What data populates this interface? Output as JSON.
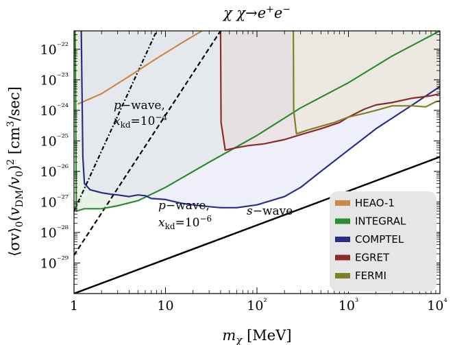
{
  "chart_data": {
    "type": "line",
    "title": "χ χ→e⁺e⁻",
    "xlabel": "m_χ  [MeV]",
    "ylabel": "⟨σv⟩₀(v_DM/v₀)²  [cm³/sec]",
    "xscale": "log",
    "yscale": "log",
    "xlim": [
      1,
      10000
    ],
    "ylim": [
      1e-30,
      4e-22
    ],
    "x_ticks": [
      "1",
      "10",
      "10²",
      "10³",
      "10⁴"
    ],
    "y_ticks": [
      "10⁻²⁹",
      "10⁻²⁸",
      "10⁻²⁷",
      "10⁻²⁶",
      "10⁻²⁵",
      "10⁻²⁴",
      "10⁻²³",
      "10⁻²²"
    ],
    "legend_position": "bottom-right",
    "series": [
      {
        "name": "HEAO-1",
        "color": "#c8894a",
        "fill": "#f3e6d8",
        "points": [
          [
            1.1,
            1.6e-24
          ],
          [
            2,
            3.5e-24
          ],
          [
            4,
            1.3e-23
          ],
          [
            8,
            5e-23
          ],
          [
            15,
            1.6e-22
          ],
          [
            25,
            4e-22
          ]
        ]
      },
      {
        "name": "INTEGRAL",
        "color": "#2e8b2e",
        "fill": "#d6e8d4",
        "points": [
          [
            1.03,
            4e-22
          ],
          [
            1.06,
            5e-28
          ],
          [
            1.3,
            6e-28
          ],
          [
            2,
            6e-28
          ],
          [
            3,
            7.5e-28
          ],
          [
            5,
            1.1e-27
          ],
          [
            10,
            3e-27
          ],
          [
            30,
            2e-26
          ],
          [
            100,
            1.5e-25
          ],
          [
            300,
            1.2e-24
          ],
          [
            1000,
            8e-24
          ],
          [
            3000,
            6e-23
          ],
          [
            10000,
            4e-22
          ]
        ]
      },
      {
        "name": "COMPTEL",
        "color": "#2b2b8f",
        "fill": "#e2e2f4",
        "points": [
          [
            1.2,
            4e-22
          ],
          [
            1.25,
            3e-26
          ],
          [
            1.3,
            4e-27
          ],
          [
            1.5,
            2.5e-27
          ],
          [
            2,
            2e-27
          ],
          [
            2.5,
            1.8e-27
          ],
          [
            3,
            1.7e-27
          ],
          [
            4,
            1.5e-27
          ],
          [
            5,
            1.7e-27
          ],
          [
            6,
            1.6e-27
          ],
          [
            7,
            1.3e-27
          ],
          [
            10,
            1.2e-27
          ],
          [
            15,
            9e-28
          ],
          [
            20,
            8e-28
          ],
          [
            30,
            7e-28
          ],
          [
            40,
            6.5e-28
          ],
          [
            60,
            6.5e-28
          ],
          [
            100,
            8e-28
          ],
          [
            200,
            1.5e-27
          ],
          [
            300,
            3e-27
          ],
          [
            500,
            1e-26
          ],
          [
            1000,
            5e-26
          ],
          [
            2000,
            2.5e-25
          ],
          [
            5000,
            1.5e-24
          ],
          [
            10000,
            6e-24
          ]
        ]
      },
      {
        "name": "EGRET",
        "color": "#8b2a2a",
        "fill": "#ead8d8",
        "points": [
          [
            40,
            4e-22
          ],
          [
            40.5,
            4e-25
          ],
          [
            45,
            5e-26
          ],
          [
            60,
            6e-26
          ],
          [
            80,
            7e-26
          ],
          [
            120,
            8e-26
          ],
          [
            200,
            1.1e-25
          ],
          [
            300,
            1.6e-25
          ],
          [
            500,
            2.5e-25
          ],
          [
            800,
            4e-25
          ],
          [
            1000,
            6e-25
          ],
          [
            1500,
            1.1e-24
          ],
          [
            2000,
            1.5e-24
          ],
          [
            3000,
            1.8e-24
          ],
          [
            5000,
            2.5e-24
          ],
          [
            8000,
            3e-24
          ],
          [
            10000,
            3.5e-24
          ]
        ]
      },
      {
        "name": "FERMI",
        "color": "#7f7f26",
        "fill": "#eeeedd",
        "points": [
          [
            250,
            4e-22
          ],
          [
            252,
            1e-24
          ],
          [
            270,
            1.7e-25
          ],
          [
            350,
            2.2e-25
          ],
          [
            500,
            3e-25
          ],
          [
            700,
            4e-25
          ],
          [
            1000,
            6e-25
          ],
          [
            1500,
            8e-25
          ],
          [
            2000,
            1e-24
          ],
          [
            3000,
            1.4e-24
          ],
          [
            5000,
            1.4e-24
          ],
          [
            7000,
            1.3e-24
          ],
          [
            9000,
            1.9e-24
          ],
          [
            10000,
            2e-24
          ]
        ]
      }
    ],
    "reference_lines": [
      {
        "label": "s−wave",
        "style": "solid",
        "points": [
          [
            1,
            1e-30
          ],
          [
            10000,
            3e-26
          ]
        ]
      },
      {
        "label": "p−wave, x_kd=10⁻⁴",
        "style": "dashdot",
        "points": [
          [
            1,
            5e-28
          ],
          [
            8,
            4e-22
          ]
        ]
      },
      {
        "label": "p−wave, x_kd=10⁻⁶",
        "style": "dashed",
        "points": [
          [
            1,
            1.8e-29
          ],
          [
            40,
            4e-22
          ]
        ]
      }
    ],
    "annotations": [
      {
        "line1_var": "p",
        "line1_rest": "−wave,",
        "line2_var": "x",
        "line2_sub": "kd",
        "line2_eq": "=10",
        "line2_exp": "−4"
      },
      {
        "line1_var": "p",
        "line1_rest": "−wave,",
        "line2_var": "x",
        "line2_sub": "kd",
        "line2_eq": "=10",
        "line2_exp": "−6"
      },
      {
        "line1_var": "s",
        "line1_rest": "−wave"
      }
    ]
  },
  "colors": {
    "legend_bg": "#e6e6e6",
    "frame": "#000000"
  }
}
